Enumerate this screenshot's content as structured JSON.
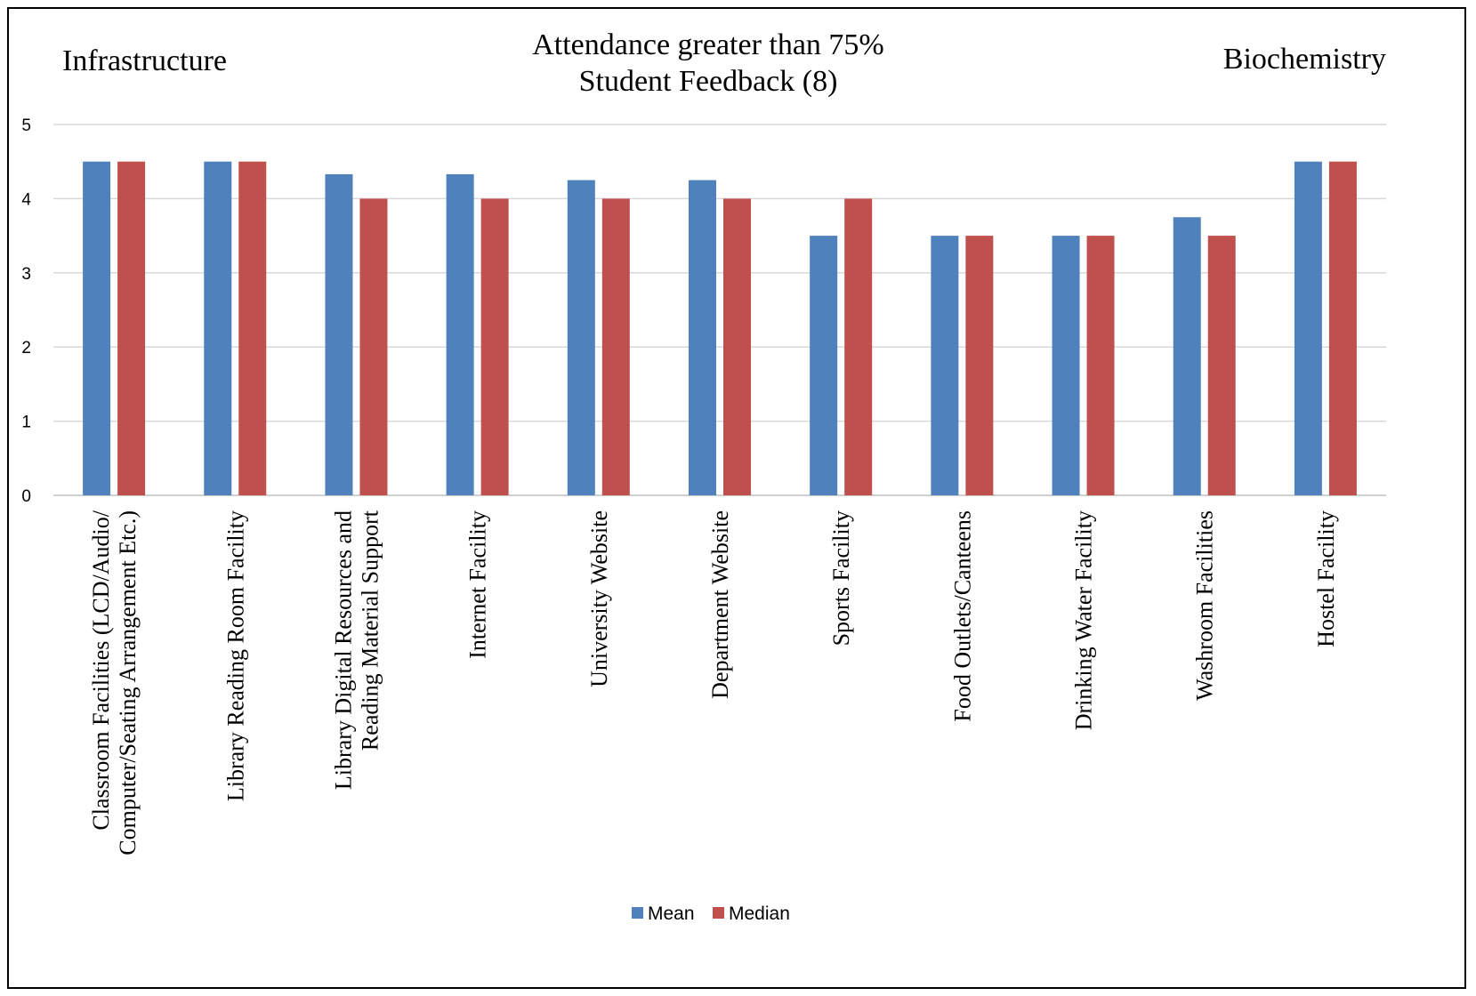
{
  "corner_labels": {
    "left": "Infrastructure",
    "right": "Biochemistry"
  },
  "chart_data": {
    "type": "bar",
    "title": [
      "Attendance greater than 75%",
      "Student Feedback (8)"
    ],
    "categories": [
      [
        "Classroom Facilities (LCD/Audio/",
        "Computer/Seating Arrangement Etc.)"
      ],
      [
        "Library Reading Room Facility"
      ],
      [
        "Library Digital Resources and",
        "Reading Material Support"
      ],
      [
        "Internet Facility"
      ],
      [
        "University Website"
      ],
      [
        "Department Website"
      ],
      [
        "Sports Facility"
      ],
      [
        "Food Outlets/Canteens"
      ],
      [
        "Drinking Water Facility"
      ],
      [
        "Washroom Facilities"
      ],
      [
        "Hostel Facility"
      ]
    ],
    "series": [
      {
        "name": "Mean",
        "color": "#4F81BD",
        "values": [
          4.5,
          4.5,
          4.33,
          4.33,
          4.25,
          4.25,
          3.5,
          3.5,
          3.5,
          3.75,
          4.5
        ]
      },
      {
        "name": "Median",
        "color": "#C0504D",
        "values": [
          4.5,
          4.5,
          4.0,
          4.0,
          4.0,
          4.0,
          4.0,
          3.5,
          3.5,
          3.5,
          4.5
        ]
      }
    ],
    "ylim": [
      0,
      5
    ],
    "yticks": [
      0,
      1,
      2,
      3,
      4,
      5
    ],
    "grid": true,
    "legend": "bottom-center"
  }
}
